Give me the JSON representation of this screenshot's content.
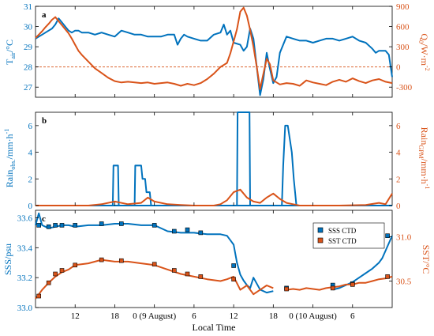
{
  "colors": {
    "blue": "#0072BD",
    "orange": "#D95319",
    "zero_line": "#D95319"
  },
  "x_axis": {
    "label": "Local Time",
    "range_hours": [
      6,
      60
    ],
    "ticks": [
      {
        "hour": 12,
        "label": "12"
      },
      {
        "hour": 18,
        "label": "18"
      },
      {
        "hour": 24,
        "label": "0 (9 August)"
      },
      {
        "hour": 30,
        "label": "6"
      },
      {
        "hour": 36,
        "label": "12"
      },
      {
        "hour": 42,
        "label": "18"
      },
      {
        "hour": 48,
        "label": "0 (10 August)"
      },
      {
        "hour": 54,
        "label": "6"
      }
    ]
  },
  "chart_data": [
    {
      "type": "line",
      "panel": "a",
      "left_axis": {
        "label_main": "T",
        "label_sub": "air",
        "label_unit": "/°C",
        "range": [
          26.5,
          31
        ],
        "ticks": [
          27,
          28,
          29,
          30,
          31
        ]
      },
      "right_axis": {
        "label_main": "Q",
        "label_sub": "0",
        "label_unit": "/W·m",
        "label_sup": "-2",
        "range": [
          -450,
          900
        ],
        "ticks": [
          -300,
          0,
          300,
          600,
          900
        ]
      },
      "zero_line_value": 0,
      "series": [
        {
          "axis": "left",
          "x": [
            6,
            6.5,
            7,
            7.5,
            8,
            8.5,
            9,
            9.5,
            10,
            10.5,
            11,
            11.5,
            12,
            12.5,
            13,
            14,
            15,
            16,
            17,
            18,
            19,
            20,
            21,
            22,
            23,
            24,
            25,
            26,
            27,
            27.5,
            28,
            28.5,
            29,
            30,
            31,
            32,
            33,
            34,
            34.5,
            35,
            35.5,
            36,
            37,
            37.5,
            38,
            38.5,
            39,
            39.5,
            40,
            40.5,
            41,
            41.5,
            42,
            42.5,
            43,
            44,
            45,
            46,
            47,
            48,
            49,
            50,
            51,
            52,
            53,
            54,
            55,
            56,
            57,
            57.5,
            58,
            58.5,
            59,
            59.5,
            60
          ],
          "y": [
            29.4,
            29.5,
            29.6,
            29.7,
            29.8,
            29.9,
            30.1,
            30.4,
            30.2,
            30.0,
            29.8,
            29.7,
            29.8,
            29.8,
            29.7,
            29.7,
            29.6,
            29.7,
            29.6,
            29.5,
            29.8,
            29.7,
            29.6,
            29.6,
            29.5,
            29.5,
            29.5,
            29.6,
            29.6,
            29.1,
            29.4,
            29.6,
            29.5,
            29.4,
            29.3,
            29.3,
            29.6,
            29.7,
            30.1,
            29.6,
            29.8,
            29.2,
            29.1,
            28.8,
            29.0,
            29.9,
            29.4,
            28.0,
            26.6,
            27.4,
            28.7,
            27.9,
            27.2,
            27.5,
            28.7,
            29.5,
            29.4,
            29.3,
            29.3,
            29.2,
            29.3,
            29.4,
            29.4,
            29.3,
            29.4,
            29.5,
            29.3,
            29.2,
            28.9,
            28.7,
            28.8,
            28.8,
            28.8,
            28.6,
            27.5
          ]
        },
        {
          "axis": "right",
          "x": [
            6,
            6.5,
            7,
            7.5,
            8,
            8.5,
            9,
            9.5,
            10,
            10.5,
            11,
            11.5,
            12,
            12.5,
            13,
            14,
            15,
            16,
            17,
            18,
            19,
            20,
            21,
            22,
            23,
            24,
            25,
            26,
            27,
            28,
            29,
            30,
            31,
            32,
            33,
            34,
            35,
            35.5,
            36,
            36.5,
            37,
            37.5,
            38,
            38.5,
            39,
            39.5,
            40,
            40.5,
            41,
            41.5,
            42,
            43,
            44,
            45,
            46,
            47,
            48,
            49,
            50,
            51,
            52,
            53,
            54,
            55,
            56,
            57,
            58,
            59,
            60
          ],
          "y": [
            430,
            480,
            530,
            590,
            640,
            700,
            740,
            680,
            620,
            560,
            500,
            420,
            330,
            240,
            180,
            80,
            -20,
            -90,
            -160,
            -210,
            -230,
            -220,
            -230,
            -240,
            -230,
            -250,
            -240,
            -230,
            -250,
            -280,
            -250,
            -270,
            -240,
            -180,
            -100,
            0,
            60,
            200,
            380,
            560,
            820,
            880,
            760,
            550,
            300,
            0,
            -330,
            -100,
            120,
            40,
            -200,
            -260,
            -240,
            -250,
            -280,
            -200,
            -230,
            -250,
            -270,
            -220,
            -190,
            -220,
            -170,
            -210,
            -240,
            -200,
            -180,
            -220,
            -240
          ]
        }
      ]
    },
    {
      "type": "line",
      "panel": "b",
      "left_axis": {
        "label_main": "Rain",
        "label_sub": "obs.",
        "label_unit": "/mm·h",
        "label_sup": "-1",
        "range": [
          0,
          7
        ],
        "ticks": [
          0,
          2,
          4,
          6
        ]
      },
      "right_axis": {
        "label_main": "Rain",
        "label_sub": "GPM",
        "label_unit": "/mm·h",
        "label_sup": "-1",
        "range": [
          0,
          7
        ],
        "ticks": [
          0,
          2,
          4,
          6
        ]
      },
      "series": [
        {
          "axis": "left",
          "x": [
            6,
            17.7,
            17.8,
            18.5,
            18.6,
            21,
            21.1,
            22,
            22.2,
            22.6,
            22.8,
            23.3,
            23.5,
            60
          ],
          "y": [
            0,
            0,
            3,
            3,
            0,
            0,
            3,
            3,
            2,
            2,
            1,
            1,
            0,
            0
          ]
        },
        {
          "axis": "left",
          "x": [
            6,
            36.5,
            36.6,
            38.4,
            38.5,
            43.3,
            43.5,
            43.8,
            44.2,
            44.8,
            45.1,
            45.4,
            45.5,
            60
          ],
          "y": [
            0,
            0,
            7.0,
            7.0,
            0,
            0,
            3,
            6,
            6,
            4,
            2,
            0.5,
            0,
            0
          ]
        },
        {
          "axis": "right",
          "x": [
            6,
            14,
            16,
            18,
            20,
            22,
            23,
            24,
            26,
            28,
            30,
            33,
            34,
            35,
            36,
            37,
            38,
            39,
            40,
            41,
            42,
            43,
            44,
            45,
            46,
            48,
            52,
            56,
            58,
            59,
            60
          ],
          "y": [
            0,
            0,
            0.1,
            0.3,
            0.1,
            0.2,
            0.6,
            0.3,
            0.1,
            0.05,
            0,
            0,
            0.1,
            0.4,
            1.0,
            1.2,
            0.6,
            0.3,
            0.2,
            0.6,
            0.9,
            0.5,
            0.2,
            0.1,
            0,
            0,
            0,
            0.05,
            0.2,
            0.1,
            0.9
          ]
        }
      ]
    },
    {
      "type": "line",
      "panel": "c",
      "left_axis": {
        "label": "SSS/psu",
        "range": [
          33.0,
          33.65
        ],
        "ticks": [
          33.0,
          33.2,
          33.4,
          33.6
        ]
      },
      "right_axis": {
        "label": "SST/°C",
        "range": [
          30.2,
          31.3
        ],
        "ticks": [
          30.5,
          31.0
        ]
      },
      "legend": {
        "position": "top-right",
        "entries": [
          "SSS  CTD",
          "SST  CTD"
        ]
      },
      "series": [
        {
          "name": "SSS",
          "axis": "left",
          "x": [
            6,
            6.5,
            7,
            8,
            9,
            10,
            11,
            12,
            14,
            16,
            18,
            20,
            22,
            24,
            26,
            28,
            30,
            32,
            34,
            35,
            35.5,
            36,
            36.5,
            37,
            37.5,
            38,
            38.5,
            39,
            40,
            41,
            42
          ],
          "y": [
            33.55,
            33.63,
            33.55,
            33.53,
            33.54,
            33.55,
            33.55,
            33.54,
            33.55,
            33.55,
            33.56,
            33.56,
            33.55,
            33.55,
            33.51,
            33.5,
            33.5,
            33.49,
            33.49,
            33.48,
            33.45,
            33.42,
            33.3,
            33.22,
            33.18,
            33.15,
            33.13,
            33.2,
            33.12,
            33.1,
            33.11
          ]
        },
        {
          "name": "SSS",
          "axis": "left",
          "x": [
            51,
            52,
            53,
            54,
            55,
            56,
            57,
            58,
            58.5,
            59,
            59.5,
            60
          ],
          "y": [
            33.12,
            33.13,
            33.15,
            33.17,
            33.2,
            33.23,
            33.26,
            33.3,
            33.33,
            33.38,
            33.43,
            33.48
          ]
        },
        {
          "name": "SST",
          "axis": "right",
          "x": [
            6,
            6.5,
            7,
            8,
            9,
            10,
            11,
            12,
            14,
            16,
            18,
            20,
            22,
            24,
            26,
            28,
            30,
            32,
            34,
            35,
            36,
            37,
            38,
            39,
            40,
            41,
            42
          ],
          "y": [
            30.3,
            30.35,
            30.4,
            30.48,
            30.55,
            30.6,
            30.63,
            30.68,
            30.7,
            30.74,
            30.72,
            30.72,
            30.7,
            30.68,
            30.63,
            30.58,
            30.55,
            30.52,
            30.5,
            30.52,
            30.55,
            30.4,
            30.45,
            30.35,
            30.4,
            30.45,
            30.42
          ]
        },
        {
          "name": "SST",
          "axis": "right",
          "x": [
            44,
            45,
            46,
            47,
            48,
            49,
            50,
            51,
            52,
            53,
            54,
            55,
            56,
            57,
            58,
            59,
            60
          ],
          "y": [
            30.4,
            30.41,
            30.4,
            30.42,
            30.41,
            30.4,
            30.42,
            30.43,
            30.44,
            30.46,
            30.46,
            30.48,
            30.48,
            30.5,
            30.52,
            30.53,
            30.55
          ]
        }
      ],
      "ctd": {
        "sss": {
          "x": [
            6.5,
            8,
            9,
            10,
            12,
            16,
            19,
            24,
            27,
            29,
            31,
            36,
            44,
            51,
            54,
            59.3
          ],
          "y": [
            33.55,
            33.54,
            33.55,
            33.55,
            33.55,
            33.56,
            33.56,
            33.55,
            33.51,
            33.52,
            33.5,
            33.28,
            33.13,
            33.15,
            33.16,
            33.48
          ]
        },
        "sst": {
          "x": [
            6.5,
            8,
            9,
            10,
            12,
            16,
            19,
            24,
            27,
            29,
            31,
            36,
            44,
            51,
            54,
            59.3
          ],
          "y": [
            30.33,
            30.48,
            30.58,
            30.62,
            30.68,
            30.74,
            30.73,
            30.69,
            30.62,
            30.58,
            30.55,
            30.52,
            30.41,
            30.42,
            30.46,
            30.55
          ]
        }
      }
    }
  ]
}
